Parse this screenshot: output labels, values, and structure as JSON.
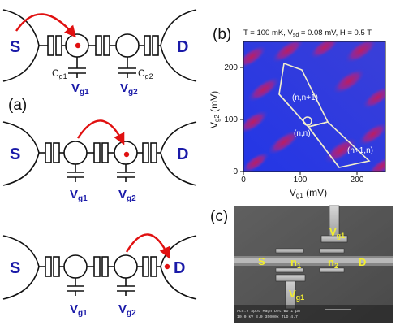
{
  "panels": {
    "a": {
      "label": "(a)",
      "source": "S",
      "drain": "D",
      "gate1_sym": "V",
      "gate1_sub": "g1",
      "gate2_sym": "V",
      "gate2_sub": "g2",
      "cap1_sym": "C",
      "cap1_sub": "g1",
      "cap2_sym": "C",
      "cap2_sub": "g2",
      "arrow_color": "#e01010",
      "electron_color": "#e01010",
      "text_color": "#1a1aa8"
    },
    "b": {
      "label": "(b)",
      "conditions": "T = 100 mK, V",
      "conditions_sub": "sd",
      "conditions_tail": " = 0.08 mV, H = 0.5 T",
      "x_sym": "V",
      "x_sub": "g1",
      "x_unit": " (mV)",
      "y_sym": "V",
      "y_sub": "g2",
      "y_unit": " (mV)",
      "x_ticks": [
        "0",
        "100",
        "200"
      ],
      "y_ticks": [
        "0",
        "100",
        "200"
      ],
      "region_labels": [
        "(n,n+1)",
        "(n,n)",
        "(n+1,n)"
      ],
      "colormap": [
        "#2438e0",
        "#7030b0",
        "#c01c60"
      ]
    },
    "c": {
      "label": "(c)",
      "labels": {
        "vg1_top_sym": "V",
        "vg1_top_sub": "g1",
        "s": "S",
        "n1_sym": "n",
        "n1_sub": "1",
        "n2_sym": "n",
        "n2_sub": "2",
        "d": "D",
        "vg1_bottom_sym": "V",
        "vg1_bottom_sub": "g1"
      },
      "label_color": "#f2ee30",
      "footer": "Acc.V  Spot Magn   Det  WD           1 μm",
      "footer2": "10.0 kV 3.0  35000x  TLD  4.7"
    }
  },
  "chart_data": {
    "type": "heatmap",
    "title": "T = 100 mK, Vsd = 0.08 mV, H = 0.5 T",
    "xlabel": "Vg1 (mV)",
    "ylabel": "Vg2 (mV)",
    "xlim": [
      0,
      250
    ],
    "ylim": [
      0,
      250
    ],
    "x_ticks": [
      0,
      100,
      200
    ],
    "y_ticks": [
      0,
      100,
      200
    ],
    "annotations": [
      {
        "text": "(n,n+1)",
        "x": 120,
        "y": 120
      },
      {
        "text": "(n,n)",
        "x": 135,
        "y": 62
      },
      {
        "text": "(n+1,n)",
        "x": 200,
        "y": 35
      }
    ],
    "grid": false
  }
}
